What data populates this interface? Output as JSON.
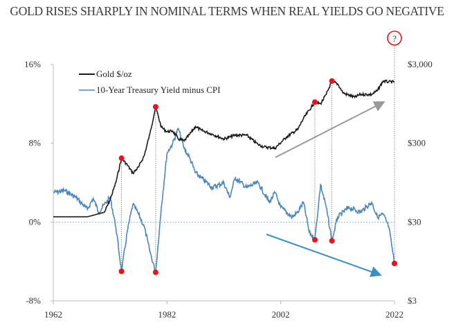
{
  "chart_data": {
    "type": "line",
    "title": "GOLD RISES SHARPLY IN NOMINAL TERMS WHEN REAL YIELDS GO NEGATIVE",
    "xlabel": "",
    "ylabel": "",
    "xlim": [
      1962,
      2022
    ],
    "x_ticks": [
      "1962",
      "1982",
      "2002",
      "2022"
    ],
    "y_left": {
      "lim": [
        -8,
        16
      ],
      "ticks": [
        "16%",
        "8%",
        "0%",
        "-8%"
      ],
      "tick_values": [
        16,
        8,
        0,
        -8
      ]
    },
    "y_right": {
      "scale": "log",
      "lim": [
        3,
        3000
      ],
      "ticks": [
        "$3,000",
        "$300",
        "$30",
        "$3"
      ],
      "tick_values": [
        3000,
        300,
        30,
        3
      ]
    },
    "legend": {
      "placement": "top-left",
      "entries": [
        "Gold $/oz",
        "10-Year Treasury Yield minus CPI"
      ]
    },
    "colors": {
      "gold": "#1a1a1a",
      "real_yield": "#4a86b8",
      "marker": "#e8141c",
      "gray_arrow": "#999999",
      "blue_arrow": "#3d8fc4",
      "zero_line": "#8fb8d8"
    },
    "series": [
      {
        "name": "Gold $/oz",
        "axis": "right",
        "x": [
          1962,
          1968,
          1971,
          1972,
          1973,
          1974,
          1975,
          1976,
          1977,
          1978,
          1979,
          1980,
          1981,
          1982,
          1983,
          1984,
          1985,
          1986,
          1987,
          1988,
          1990,
          1992,
          1994,
          1996,
          1998,
          1999,
          2001,
          2003,
          2005,
          2006,
          2008,
          2009,
          2010,
          2011,
          2012,
          2013,
          2015,
          2016,
          2018,
          2019,
          2020,
          2021,
          2022
        ],
        "values": [
          35,
          35,
          40,
          58,
          95,
          194,
          160,
          125,
          150,
          210,
          400,
          870,
          480,
          420,
          430,
          340,
          320,
          390,
          490,
          440,
          390,
          340,
          380,
          380,
          290,
          270,
          260,
          360,
          450,
          620,
          1000,
          950,
          1250,
          1850,
          1700,
          1300,
          1150,
          1250,
          1250,
          1400,
          1850,
          1800,
          1800
        ]
      },
      {
        "name": "10-Year Treasury Yield minus CPI",
        "axis": "left",
        "x": [
          1962,
          1964,
          1966,
          1968,
          1969,
          1970,
          1971,
          1972,
          1973,
          1974,
          1975,
          1976,
          1977,
          1978,
          1979,
          1980,
          1981,
          1982,
          1983,
          1984,
          1985,
          1986,
          1987,
          1988,
          1990,
          1992,
          1993,
          1994,
          1996,
          1998,
          2000,
          2001,
          2002,
          2004,
          2005,
          2006,
          2007,
          2008,
          2009,
          2010,
          2011,
          2012,
          2014,
          2016,
          2018,
          2019,
          2020,
          2021,
          2022
        ],
        "values": [
          3.0,
          3.2,
          2.5,
          1.3,
          2.4,
          1.0,
          1.8,
          2.5,
          -0.5,
          -5.0,
          -1.0,
          1.8,
          0.8,
          -0.5,
          -3.0,
          -5.1,
          1.5,
          7.0,
          8.0,
          9.5,
          7.5,
          6.5,
          5.0,
          4.5,
          3.5,
          4.0,
          2.5,
          4.5,
          3.5,
          4.0,
          2.0,
          3.0,
          1.5,
          0.5,
          1.0,
          2.0,
          -1.0,
          -1.8,
          3.8,
          1.5,
          -1.9,
          0.5,
          1.5,
          1.0,
          2.0,
          0.5,
          0.8,
          -0.5,
          -4.2
        ]
      }
    ],
    "annotations": {
      "gold_peak_markers": [
        1974,
        1980,
        2008,
        2011
      ],
      "yield_trough_markers": [
        1974,
        1980,
        2008,
        2011,
        2022
      ],
      "question_mark_label": "?",
      "question_mark_year": 2022
    }
  }
}
